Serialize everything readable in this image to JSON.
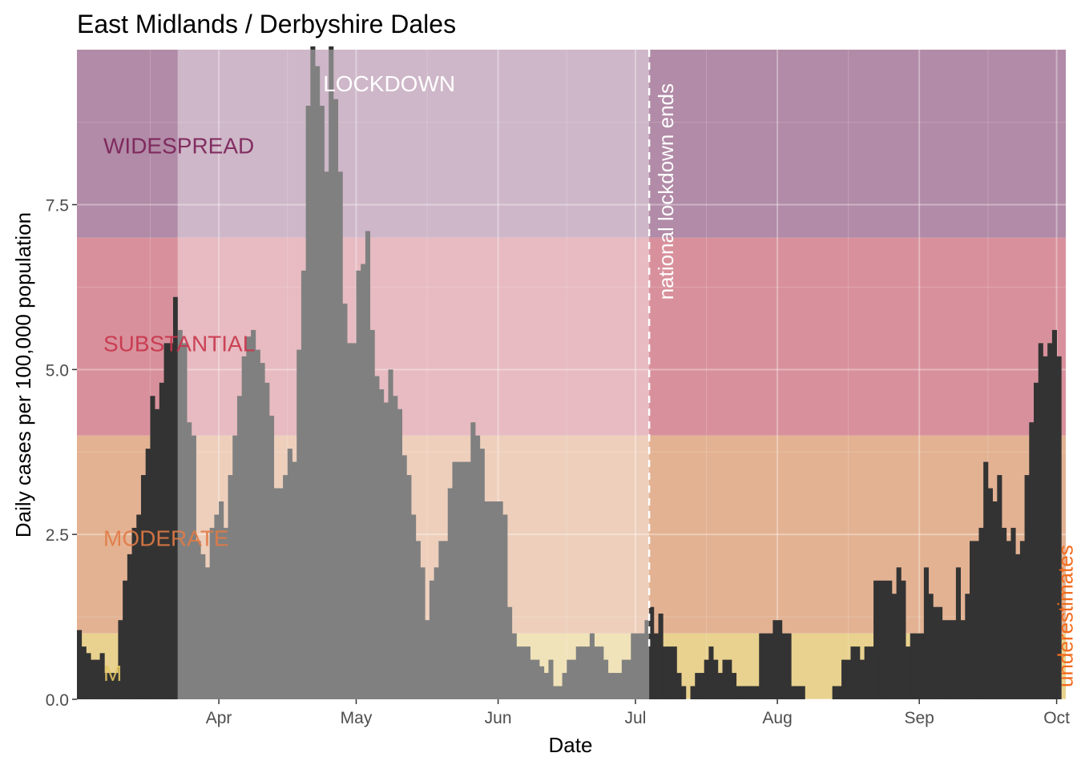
{
  "chart_data": {
    "type": "bar",
    "title": "East Midlands / Derbyshire Dales",
    "xlabel": "Date",
    "ylabel": "Daily cases per 100,000 population",
    "xlim": [
      "2020-03-01",
      "2020-10-03"
    ],
    "ylim": [
      0,
      9.85
    ],
    "y_ticks": [
      0,
      2.5,
      5.0,
      7.5
    ],
    "y_tick_labels": [
      "0.0",
      "2.5",
      "5.0",
      "7.5"
    ],
    "x_ticks": [
      {
        "date": "2020-04-01",
        "label": "Apr"
      },
      {
        "date": "2020-05-01",
        "label": "May"
      },
      {
        "date": "2020-06-01",
        "label": "Jun"
      },
      {
        "date": "2020-07-01",
        "label": "Jul"
      },
      {
        "date": "2020-08-01",
        "label": "Aug"
      },
      {
        "date": "2020-09-01",
        "label": "Sep"
      },
      {
        "date": "2020-10-01",
        "label": "Oct"
      }
    ],
    "grid": true,
    "bands": [
      {
        "label": "M",
        "from": 0,
        "to": 1,
        "color": "#e9d28f",
        "label_color": "#e2c462"
      },
      {
        "label": "MODERATE",
        "from": 1,
        "to": 4,
        "color": "#e3b293",
        "label_color": "#e07a45"
      },
      {
        "label": "SUBSTANTIAL",
        "from": 4,
        "to": 7,
        "color": "#d8919c",
        "label_color": "#c8344a"
      },
      {
        "label": "WIDESPREAD",
        "from": 7,
        "to": 9.85,
        "color": "#b18ba7",
        "label_color": "#7a1f56"
      }
    ],
    "lockdown": {
      "label": "LOCKDOWN",
      "start": "2020-03-23",
      "end": "2020-07-04",
      "overlay_color": "#ffffff"
    },
    "annotations": [
      {
        "label": "national lockdown ends",
        "date": "2020-07-04",
        "line": "dashed"
      },
      {
        "label": "underestimates",
        "date": "2020-10-01",
        "color": "#f26b1d"
      }
    ],
    "bar_color": "#333333",
    "start_date": "2020-03-01",
    "values": [
      1.05,
      0.8,
      0.7,
      0.6,
      0.6,
      0.7,
      0.4,
      0.4,
      0.4,
      1.2,
      1.8,
      2.2,
      2.6,
      2.8,
      3.4,
      3.8,
      4.6,
      4.4,
      4.8,
      5.4,
      5.4,
      6.1,
      5.6,
      5.4,
      4.2,
      4.0,
      2.4,
      2.2,
      2.0,
      2.6,
      2.8,
      3.0,
      2.6,
      3.4,
      4.0,
      4.6,
      5.2,
      5.5,
      5.6,
      5.3,
      5.1,
      4.8,
      4.3,
      3.2,
      3.2,
      3.4,
      3.8,
      3.6,
      5.3,
      6.5,
      9.0,
      9.9,
      9.6,
      9.0,
      8.0,
      9.9,
      9.1,
      8.0,
      6.0,
      5.4,
      5.4,
      6.5,
      6.6,
      7.1,
      5.6,
      4.9,
      4.7,
      4.5,
      5.0,
      4.6,
      4.4,
      3.7,
      3.4,
      2.8,
      2.4,
      2.0,
      1.2,
      1.8,
      2.0,
      2.4,
      2.4,
      3.2,
      3.6,
      3.6,
      3.6,
      3.6,
      4.2,
      4.0,
      3.8,
      3.0,
      3.0,
      3.0,
      3.0,
      2.8,
      1.4,
      1.0,
      0.8,
      0.8,
      0.8,
      0.6,
      0.6,
      0.5,
      0.4,
      0.6,
      0.2,
      0.2,
      0.4,
      0.6,
      0.6,
      0.8,
      0.8,
      0.8,
      1.0,
      0.8,
      0.8,
      0.6,
      0.4,
      0.4,
      0.4,
      0.6,
      0.6,
      1.0,
      1.0,
      1.0,
      1.2,
      1.4,
      1.0,
      1.3,
      0.8,
      0.8,
      0.8,
      0.4,
      0.2,
      0.0,
      0.2,
      0.4,
      0.4,
      0.6,
      0.8,
      0.6,
      0.4,
      0.6,
      0.6,
      0.4,
      0.2,
      0.2,
      0.2,
      0.2,
      0.2,
      1.0,
      1.0,
      1.0,
      1.2,
      1.2,
      1.0,
      1.0,
      0.2,
      0.2,
      0.2,
      0.0,
      0.0,
      0.0,
      0.0,
      0.0,
      0.0,
      0.2,
      0.2,
      0.6,
      0.6,
      0.8,
      0.8,
      0.6,
      0.8,
      0.8,
      1.8,
      1.8,
      1.8,
      1.8,
      1.6,
      2.0,
      1.8,
      0.8,
      1.0,
      1.0,
      1.0,
      2.0,
      1.6,
      1.4,
      1.4,
      1.2,
      1.2,
      1.2,
      2.0,
      1.2,
      1.6,
      2.4,
      2.4,
      2.6,
      3.6,
      3.2,
      3.0,
      3.4,
      2.6,
      2.4,
      2.6,
      2.2,
      2.4,
      3.4,
      4.2,
      4.8,
      5.4,
      5.2,
      5.4,
      5.6,
      5.2
    ]
  }
}
